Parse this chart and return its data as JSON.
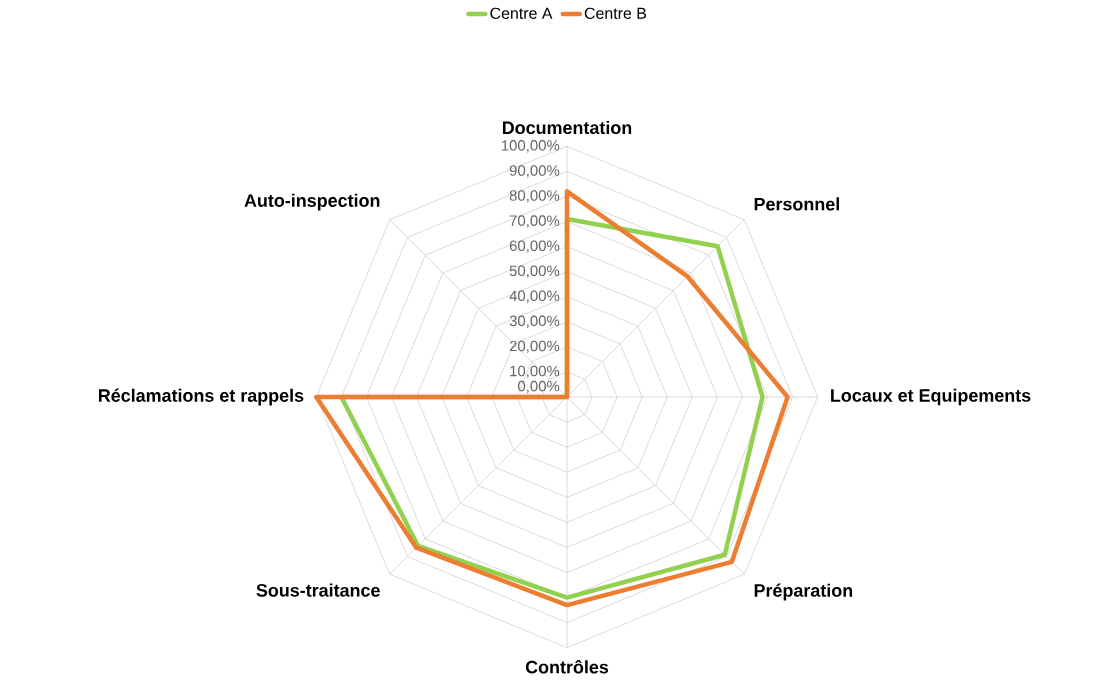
{
  "chart_data": {
    "type": "radar",
    "categories": [
      "Documentation",
      "Personnel",
      "Locaux et Equipements",
      "Préparation",
      "Contrôles",
      "Sous-traitance",
      "Réclamations et rappels",
      "Auto-inspection"
    ],
    "series": [
      {
        "name": "Centre A",
        "color": "#92d050",
        "values": [
          71,
          85,
          78,
          89,
          80,
          84,
          90,
          0
        ]
      },
      {
        "name": "Centre B",
        "color": "#ed7d31",
        "values": [
          82,
          68,
          88,
          93,
          83,
          85,
          100,
          0
        ]
      }
    ],
    "ylim": [
      0,
      100
    ],
    "yticks": [
      {
        "value": 0,
        "label": "0,00%"
      },
      {
        "value": 10,
        "label": "10,00%"
      },
      {
        "value": 20,
        "label": "20,00%"
      },
      {
        "value": 30,
        "label": "30,00%"
      },
      {
        "value": 40,
        "label": "40,00%"
      },
      {
        "value": 50,
        "label": "50,00%"
      },
      {
        "value": 60,
        "label": "60,00%"
      },
      {
        "value": 70,
        "label": "70,00%"
      },
      {
        "value": 80,
        "label": "80,00%"
      },
      {
        "value": 90,
        "label": "90,00%"
      },
      {
        "value": 100,
        "label": "100,00%"
      }
    ],
    "grid": true,
    "legend": "top"
  }
}
